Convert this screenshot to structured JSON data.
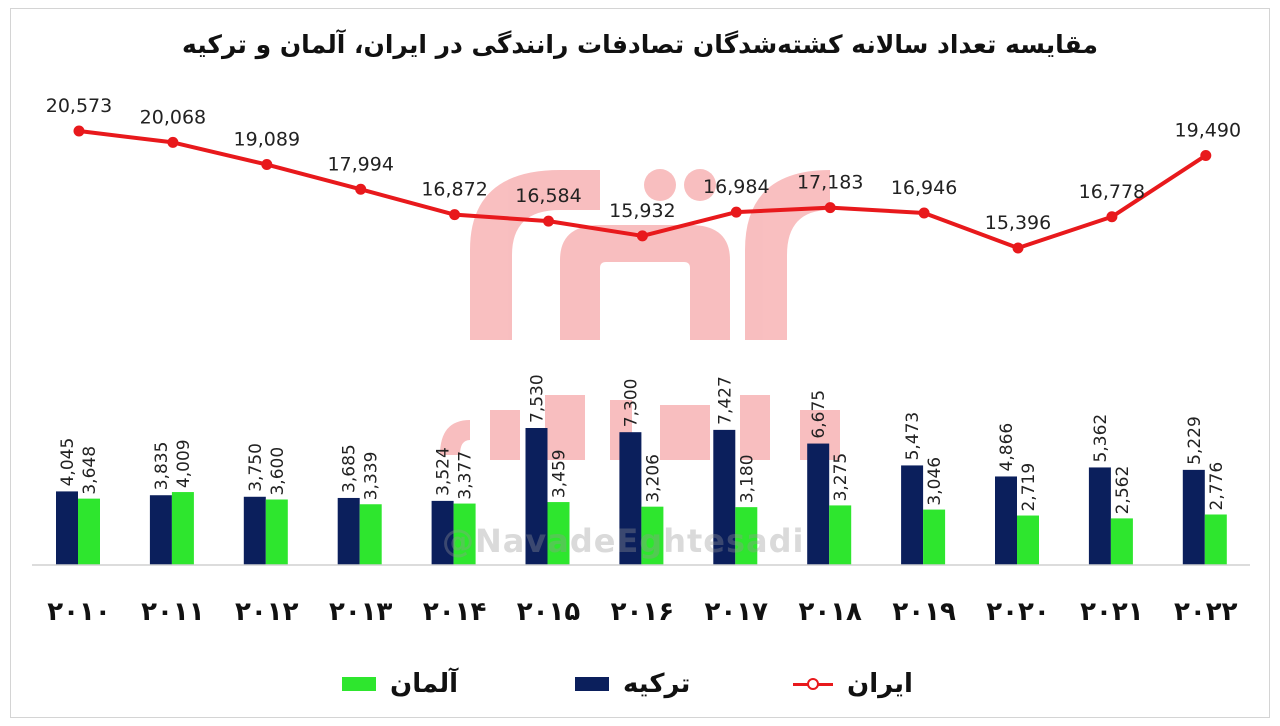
{
  "title": "مقایسه تعداد سالانه کشته‌شدگان تصادفات رانندگی در ایران، آلمان و ترکیه",
  "watermark": "@NavadeEghtesadi",
  "colors": {
    "iran": "#e8191c",
    "turkey": "#0b1f5c",
    "germany": "#2ee62e"
  },
  "legend": [
    {
      "label": "آلمان",
      "series": "germany"
    },
    {
      "label": "ترکیه",
      "series": "turkey"
    },
    {
      "label": "ایران",
      "series": "iran"
    }
  ],
  "chart_data": {
    "type": "bar+line",
    "categories": [
      "۲۰۱۰",
      "۲۰۱۱",
      "۲۰۱۲",
      "۲۰۱۳",
      "۲۰۱۴",
      "۲۰۱۵",
      "۲۰۱۶",
      "۲۰۱۷",
      "۲۰۱۸",
      "۲۰۱۹",
      "۲۰۲۰",
      "۲۰۲۱",
      "۲۰۲۲"
    ],
    "series": [
      {
        "name": "ایران",
        "key": "iran",
        "kind": "line",
        "values": [
          20573,
          20068,
          19089,
          17994,
          16872,
          16584,
          15932,
          16984,
          17183,
          16946,
          15396,
          16778,
          19490
        ],
        "labels": [
          "20,573",
          "20,068",
          "19,089",
          "17,994",
          "16,872",
          "16,584",
          "15,932",
          "16,984",
          "17,183",
          "16,946",
          "15,396",
          "16,778",
          "19,490"
        ]
      },
      {
        "name": "ترکیه",
        "key": "turkey",
        "kind": "bar",
        "values": [
          4045,
          3835,
          3750,
          3685,
          3524,
          7530,
          7300,
          7427,
          6675,
          5473,
          4866,
          5362,
          5229
        ],
        "labels": [
          "4,045",
          "3,835",
          "3,750",
          "3,685",
          "3,524",
          "7,530",
          "7,300",
          "7,427",
          "6,675",
          "5,473",
          "4,866",
          "5,362",
          "5,229"
        ]
      },
      {
        "name": "آلمان",
        "key": "germany",
        "kind": "bar",
        "values": [
          3648,
          4009,
          3600,
          3339,
          3377,
          3459,
          3206,
          3180,
          3275,
          3046,
          2719,
          2562,
          2776
        ],
        "labels": [
          "3,648",
          "4,009",
          "3,600",
          "3,339",
          "3,377",
          "3,459",
          "3,206",
          "3,180",
          "3,275",
          "3,046",
          "2,719",
          "2,562",
          "2,776"
        ]
      }
    ],
    "grid": false,
    "legend_position": "bottom-center"
  }
}
